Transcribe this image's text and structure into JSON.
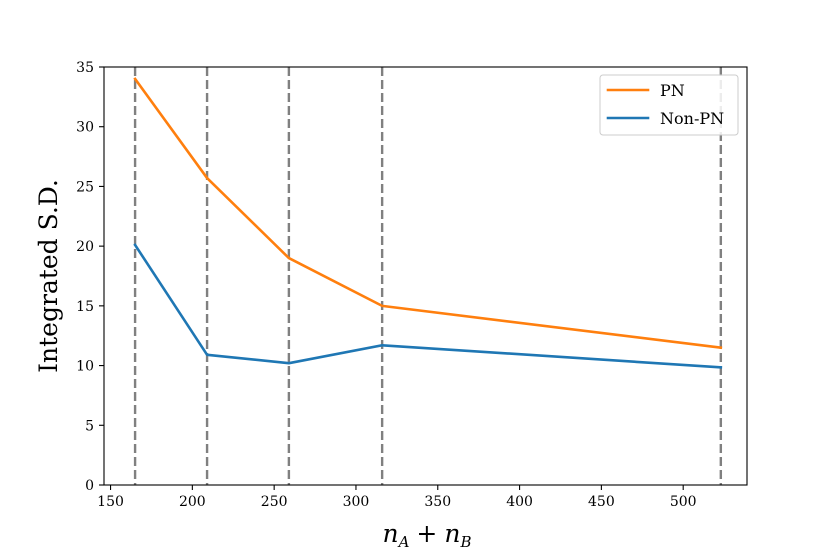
{
  "chart_data": {
    "type": "line",
    "title": "",
    "xlabel_parts": {
      "a_base": "n",
      "a_sub": "A",
      "op": "+",
      "b_base": "n",
      "b_sub": "B"
    },
    "ylabel": "Integrated S.D.",
    "xlim": [
      146,
      539
    ],
    "ylim": [
      0,
      35
    ],
    "x_ticks": [
      150,
      200,
      250,
      300,
      350,
      400,
      450,
      500
    ],
    "x_tick_labels": [
      "150",
      "200",
      "250",
      "300",
      "350",
      "400",
      "450",
      "500"
    ],
    "y_ticks": [
      0,
      5,
      10,
      15,
      20,
      25,
      30,
      35
    ],
    "y_tick_labels": [
      "0",
      "5",
      "10",
      "15",
      "20",
      "25",
      "30",
      "35"
    ],
    "vertical_reference_lines": [
      165,
      209,
      259,
      316,
      523
    ],
    "x": [
      165,
      209,
      259,
      316,
      523
    ],
    "series": [
      {
        "name": "PN",
        "color": "#ff7f0e",
        "values": [
          34.0,
          25.7,
          19.0,
          15.0,
          11.5
        ]
      },
      {
        "name": "Non-PN",
        "color": "#1f77b4",
        "values": [
          20.1,
          10.9,
          10.2,
          11.7,
          9.85
        ]
      }
    ],
    "reference_line_color": "#808080",
    "legend_position": "top-right",
    "grid": false
  }
}
